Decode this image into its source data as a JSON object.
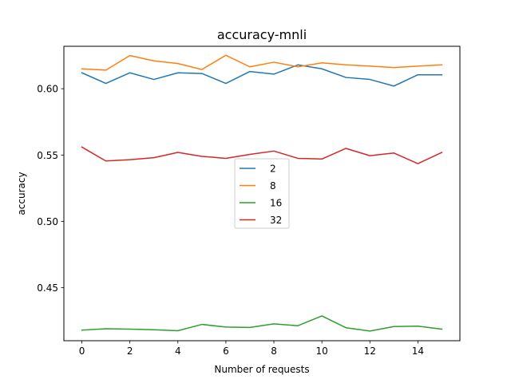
{
  "chart_data": {
    "type": "line",
    "title": "accuracy-mnli",
    "xlabel": "Number of requests",
    "ylabel": "accuracy",
    "xlim": [
      -0.75,
      15.75
    ],
    "ylim": [
      0.41,
      0.632
    ],
    "xticks": [
      0,
      2,
      4,
      6,
      8,
      10,
      12,
      14
    ],
    "yticks": [
      0.45,
      0.5,
      0.55,
      0.6
    ],
    "ytick_labels": [
      "0.45",
      "0.50",
      "0.55",
      "0.60"
    ],
    "grid": false,
    "legend_position": "center",
    "x": [
      0,
      1,
      2,
      3,
      4,
      5,
      6,
      7,
      8,
      9,
      10,
      11,
      12,
      13,
      14,
      15
    ],
    "series": [
      {
        "name": "2",
        "color": "#1f77b4",
        "values": [
          0.612,
          0.604,
          0.612,
          0.607,
          0.612,
          0.6115,
          0.604,
          0.613,
          0.611,
          0.618,
          0.615,
          0.6085,
          0.607,
          0.602,
          0.6105,
          0.6105
        ]
      },
      {
        "name": "8",
        "color": "#ff7f0e",
        "values": [
          0.615,
          0.614,
          0.625,
          0.621,
          0.619,
          0.6145,
          0.6252,
          0.6165,
          0.62,
          0.6165,
          0.6195,
          0.618,
          0.617,
          0.616,
          0.617,
          0.618
        ]
      },
      {
        "name": "16",
        "color": "#2ca02c",
        "values": [
          0.418,
          0.419,
          0.4187,
          0.4183,
          0.4175,
          0.4223,
          0.4203,
          0.42,
          0.4227,
          0.4213,
          0.4287,
          0.4198,
          0.4173,
          0.4207,
          0.421,
          0.4187
        ]
      },
      {
        "name": "32",
        "color": "#d62728",
        "values": [
          0.556,
          0.5455,
          0.5465,
          0.548,
          0.552,
          0.549,
          0.5475,
          0.5505,
          0.553,
          0.5475,
          0.547,
          0.555,
          0.5495,
          0.5515,
          0.5435,
          0.552
        ]
      }
    ]
  }
}
